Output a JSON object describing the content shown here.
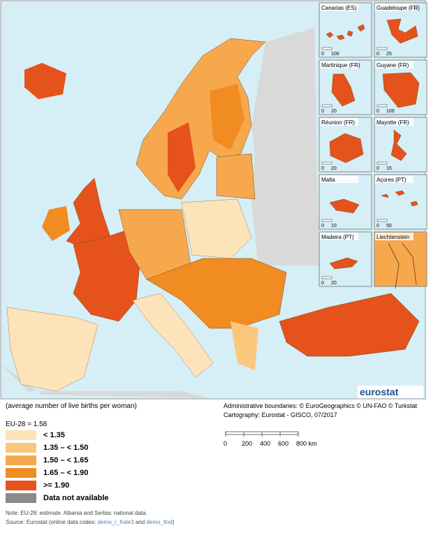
{
  "map": {
    "insets": [
      {
        "name": "Canarias (ES)",
        "scale": [
          "0",
          "100"
        ]
      },
      {
        "name": "Guadeloupe (FR)",
        "scale": [
          "0",
          "25"
        ]
      },
      {
        "name": "Martinique (FR)",
        "scale": [
          "0",
          "20"
        ]
      },
      {
        "name": "Guyane (FR)",
        "scale": [
          "0",
          "100"
        ]
      },
      {
        "name": "Réunion (FR)",
        "scale": [
          "0",
          "20"
        ]
      },
      {
        "name": "Mayotte (FR)",
        "scale": [
          "0",
          "15"
        ]
      },
      {
        "name": "Malta",
        "scale": [
          "0",
          "10"
        ]
      },
      {
        "name": "Açores (PT)",
        "scale": [
          "0",
          "50"
        ]
      },
      {
        "name": "Madeira (PT)",
        "scale": [
          "0",
          "20"
        ]
      },
      {
        "name": "Liechtenstein",
        "scale": []
      }
    ],
    "logo": "eurostat",
    "caption": "(average number of live births per woman)",
    "credits": [
      "Administrative boundaries: © EuroGeographics © UN-FAO © Turkstat",
      "Cartography: Eurostat - GISCO, 07/2017"
    ],
    "scale_bar": [
      "0",
      "200",
      "400",
      "600",
      "800 km"
    ]
  },
  "legend": {
    "title": "EU-28 = 1.58",
    "items": [
      {
        "label": "< 1.35",
        "color": "#fde3b9"
      },
      {
        "label": "1.35 – < 1.50",
        "color": "#fbc77c"
      },
      {
        "label": "1.50 – < 1.65",
        "color": "#f7a84d"
      },
      {
        "label": "1.65 – < 1.90",
        "color": "#f08c22"
      },
      {
        "label": ">= 1.90",
        "color": "#e5521b"
      },
      {
        "label": "Data not available",
        "color": "#8a8a8a"
      }
    ]
  },
  "notes": {
    "note": "Note: EU-28: estimate. Albania and Serbia: national data.",
    "source_label": "Source:",
    "source_text": "Eurostat (online data codes: ",
    "code1": "demo_r_frate3",
    "and": " and ",
    "code2": "demo_find",
    "end": ")"
  }
}
